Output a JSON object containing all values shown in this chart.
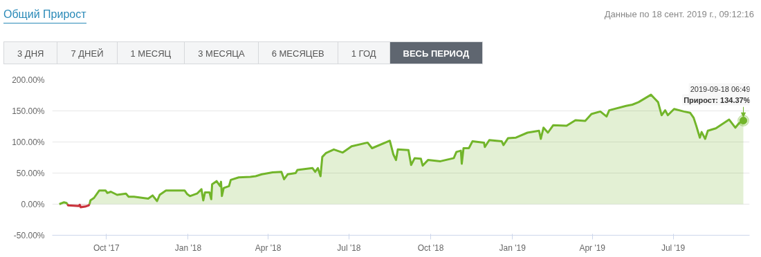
{
  "chart_data": {
    "type": "area",
    "title": "Общий Прирост",
    "subtitle": "Данные по 18 сент. 2019 г., 09:12:16",
    "annotations": [
      "3 ДНЯ",
      "7 ДНЕЙ",
      "1 МЕСЯЦ",
      "3 МЕСЯЦА",
      "6 МЕСЯЦЕВ",
      "1 ГОД",
      "ВЕСЬ ПЕРИОД",
      "2019-09-18 06:49",
      {
        "text": "Прирост: 134.37%",
        "x": "2019-09-18",
        "y": 134.37
      }
    ],
    "series": [
      {
        "color": "#c9313a",
        "x": [
          "2017-08-18",
          "2017-08-19",
          "2017-08-31",
          "2017-09-01",
          "2017-09-02",
          "2017-09-07",
          "2017-09-11",
          "2017-09-12"
        ],
        "values": [
          0,
          -2,
          -3,
          -1,
          -5,
          -4,
          -2,
          0
        ]
      },
      {
        "color": "#72b52a",
        "x": [
          "2017-08-09",
          "2017-08-14",
          "2017-08-17",
          "2017-08-18",
          "2017-08-30",
          "2017-09-12",
          "2017-09-13",
          "2017-09-17",
          "2017-09-23",
          "2017-09-30",
          "2017-10-02",
          "2017-10-06",
          "2017-10-13",
          "2017-10-23",
          "2017-10-26",
          "2017-11-01",
          "2017-11-17",
          "2017-11-22",
          "2017-11-27",
          "2017-11-30",
          "2017-12-07",
          "2017-12-28",
          "2017-12-31",
          "2018-01-03",
          "2018-01-11",
          "2018-01-16",
          "2018-01-18",
          "2018-01-20",
          "2018-01-25",
          "2018-01-27",
          "2018-01-28",
          "2018-02-02",
          "2018-02-06",
          "2018-02-07",
          "2018-02-08",
          "2018-02-10",
          "2018-02-16",
          "2018-02-18",
          "2018-02-27",
          "2018-03-12",
          "2018-03-18",
          "2018-03-25",
          "2018-04-06",
          "2018-04-16",
          "2018-04-19",
          "2018-04-23",
          "2018-05-02",
          "2018-05-04",
          "2018-05-21",
          "2018-05-24",
          "2018-05-27",
          "2018-05-30",
          "2018-06-01",
          "2018-06-05",
          "2018-06-14",
          "2018-06-24",
          "2018-07-04",
          "2018-07-22",
          "2018-07-27",
          "2018-08-16",
          "2018-08-20",
          "2018-08-23",
          "2018-08-25",
          "2018-09-06",
          "2018-09-09",
          "2018-09-13",
          "2018-09-20",
          "2018-09-22",
          "2018-09-28",
          "2018-10-12",
          "2018-10-27",
          "2018-10-30",
          "2018-11-04",
          "2018-11-05",
          "2018-11-07",
          "2018-11-13",
          "2018-11-17",
          "2018-11-30",
          "2018-12-01",
          "2018-12-06",
          "2018-12-20",
          "2018-12-22",
          "2018-12-27",
          "2019-01-05",
          "2019-01-18",
          "2019-01-31",
          "2019-02-02",
          "2019-02-05",
          "2019-02-10",
          "2019-02-16",
          "2019-03-03",
          "2019-03-13",
          "2019-03-24",
          "2019-03-31",
          "2019-04-10",
          "2019-04-17",
          "2019-04-20",
          "2019-05-09",
          "2019-05-16",
          "2019-05-23",
          "2019-06-06",
          "2019-06-10",
          "2019-06-14",
          "2019-06-18",
          "2019-06-22",
          "2019-06-25",
          "2019-07-02",
          "2019-07-13",
          "2019-07-20",
          "2019-07-24",
          "2019-07-27",
          "2019-07-31",
          "2019-08-02",
          "2019-08-06",
          "2019-08-09",
          "2019-08-18",
          "2019-09-02",
          "2019-09-09",
          "2019-09-13",
          "2019-09-18"
        ],
        "values": [
          0,
          3,
          2,
          0,
          null,
          0,
          6,
          10,
          22,
          22,
          18,
          20,
          15,
          17,
          12,
          12,
          9,
          14,
          5,
          15,
          22,
          22,
          16,
          13,
          17,
          24,
          6,
          19,
          19,
          8,
          32,
          37,
          29,
          36,
          13,
          26,
          29,
          39,
          43,
          44,
          45,
          48,
          51,
          52,
          40,
          48,
          50,
          55,
          58,
          52,
          58,
          45,
          76,
          82,
          88,
          83,
          93,
          99,
          90,
          102,
          80,
          71,
          88,
          87,
          63,
          74,
          73,
          62,
          71,
          69,
          74,
          84,
          86,
          65,
          90,
          90,
          101,
          99,
          92,
          103,
          101,
          95,
          106,
          107,
          115,
          118,
          105,
          123,
          115,
          127,
          126,
          135,
          134,
          145,
          149,
          141,
          151,
          158,
          160,
          164,
          176,
          170,
          164,
          143,
          151,
          143,
          153,
          149,
          147,
          139,
          126,
          107,
          116,
          105,
          118,
          122,
          136,
          123,
          130,
          134.37
        ]
      }
    ],
    "xlim": [
      "2017-08-01",
      "2019-09-25"
    ],
    "xticks": [
      {
        "value": "2017-10-01",
        "label": "Oct '17"
      },
      {
        "value": "2018-01-01",
        "label": "Jan '18"
      },
      {
        "value": "2018-04-01",
        "label": "Apr '18"
      },
      {
        "value": "2018-07-01",
        "label": "Jul '18"
      },
      {
        "value": "2018-10-01",
        "label": "Oct '18"
      },
      {
        "value": "2019-01-01",
        "label": "Jan '19"
      },
      {
        "value": "2019-04-01",
        "label": "Apr '19"
      },
      {
        "value": "2019-07-01",
        "label": "Jul '19"
      }
    ],
    "ylim": [
      -50,
      200
    ],
    "yticks": [
      {
        "value": -50,
        "label": "-50.00%"
      },
      {
        "value": 0,
        "label": "0.00%"
      },
      {
        "value": 50,
        "label": "50.00%"
      },
      {
        "value": 100,
        "label": "100.00%"
      },
      {
        "value": 150,
        "label": "150.00%"
      },
      {
        "value": 200,
        "label": "200.00%"
      }
    ],
    "grid": "y",
    "marker": "none",
    "line_style": "solid"
  }
}
